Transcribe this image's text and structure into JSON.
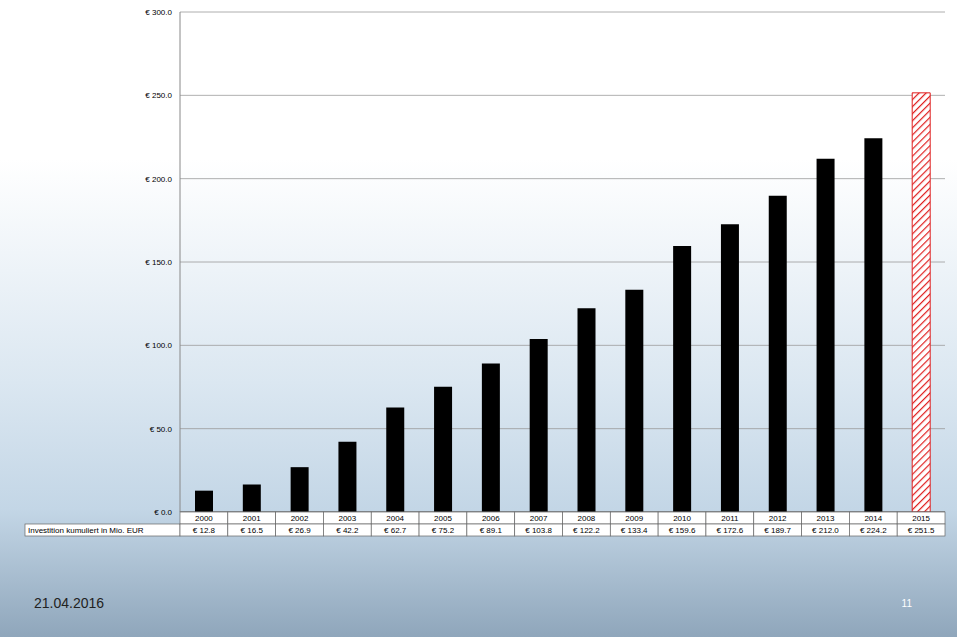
{
  "chart_data": {
    "type": "bar",
    "categories": [
      "2000",
      "2001",
      "2002",
      "2003",
      "2004",
      "2005",
      "2006",
      "2007",
      "2008",
      "2009",
      "2010",
      "2011",
      "2012",
      "2013",
      "2014",
      "2015"
    ],
    "values": [
      12.8,
      16.5,
      26.9,
      42.2,
      62.7,
      75.2,
      89.1,
      103.8,
      122.2,
      133.4,
      159.6,
      172.6,
      189.7,
      212.0,
      224.2,
      251.5
    ],
    "value_labels": [
      "€ 12.8",
      "€ 16.5",
      "€ 26.9",
      "€ 42.2",
      "€ 62.7",
      "€ 75.2",
      "€ 89.1",
      "€ 103.8",
      "€ 122.2",
      "€ 133.4",
      "€ 159.6",
      "€ 172.6",
      "€ 189.7",
      "€ 212.0",
      "€ 224.2",
      "€ 251.5"
    ],
    "table_row_label": "Investition kumuliert in Mio. EUR",
    "colors": [
      "#000000",
      "#000000",
      "#000000",
      "#000000",
      "#000000",
      "#000000",
      "#000000",
      "#000000",
      "#000000",
      "#000000",
      "#000000",
      "#000000",
      "#000000",
      "#000000",
      "#000000",
      "#e02020"
    ],
    "ylim": [
      0,
      300
    ],
    "yticks": [
      {
        "value": 0,
        "label": "€ 0.0"
      },
      {
        "value": 50,
        "label": "€ 50.0"
      },
      {
        "value": 100,
        "label": "€ 100.0"
      },
      {
        "value": 150,
        "label": "€ 150.0"
      },
      {
        "value": 200,
        "label": "€ 200.0"
      },
      {
        "value": 250,
        "label": "€ 250.0"
      },
      {
        "value": 300,
        "label": "€ 300.0"
      }
    ],
    "grid": true
  },
  "footer": {
    "date": "21.04.2016",
    "page": "11"
  }
}
